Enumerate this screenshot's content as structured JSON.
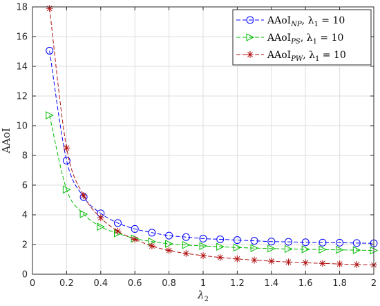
{
  "chart_data": {
    "type": "line",
    "xlabel": "λ",
    "xlabel_sub": "2",
    "ylabel": "AAoI",
    "xlim": [
      0,
      2
    ],
    "ylim": [
      0,
      18
    ],
    "xticks": [
      0,
      0.2,
      0.4,
      0.6,
      0.8,
      1,
      1.2,
      1.4,
      1.6,
      1.8,
      2
    ],
    "xtick_labels": [
      "0",
      "0.2",
      "0.4",
      "0.6",
      "0.8",
      "1",
      "1.2",
      "1.4",
      "1.6",
      "1.8",
      "2"
    ],
    "yticks": [
      0,
      2,
      4,
      6,
      8,
      10,
      12,
      14,
      16,
      18
    ],
    "ytick_labels": [
      "0",
      "2",
      "4",
      "6",
      "8",
      "10",
      "12",
      "14",
      "16",
      "18"
    ],
    "grid": true,
    "legend_position": "top-right",
    "x": [
      0.1,
      0.2,
      0.3,
      0.4,
      0.5,
      0.6,
      0.7,
      0.8,
      0.9,
      1.0,
      1.1,
      1.2,
      1.3,
      1.4,
      1.5,
      1.6,
      1.7,
      1.8,
      1.9,
      2.0
    ],
    "series": [
      {
        "name": "AAoI",
        "name_sub": "NP",
        "name_suffix": ", λ",
        "name_suffix_sub": "1",
        "name_tail": " = 10",
        "color": "#0000ff",
        "marker": "circle",
        "values": [
          15.05,
          7.65,
          5.2,
          4.1,
          3.45,
          3.05,
          2.8,
          2.6,
          2.5,
          2.4,
          2.35,
          2.3,
          2.25,
          2.2,
          2.18,
          2.15,
          2.13,
          2.12,
          2.1,
          2.08
        ]
      },
      {
        "name": "AAoI",
        "name_sub": "PS",
        "name_suffix": ", λ",
        "name_suffix_sub": "1",
        "name_tail": " = 10",
        "color": "#00bb00",
        "marker": "triangle-right",
        "values": [
          10.7,
          5.7,
          4.05,
          3.2,
          2.75,
          2.4,
          2.2,
          2.05,
          1.97,
          1.9,
          1.85,
          1.8,
          1.76,
          1.73,
          1.7,
          1.68,
          1.66,
          1.64,
          1.62,
          1.6
        ]
      },
      {
        "name": "AAoI",
        "name_sub": "PW",
        "name_suffix": ", λ",
        "name_suffix_sub": "1",
        "name_tail": " = 10",
        "color": "#b01010",
        "marker": "asterisk",
        "values": [
          17.9,
          8.5,
          5.3,
          3.8,
          2.9,
          2.35,
          1.9,
          1.6,
          1.4,
          1.25,
          1.13,
          1.03,
          0.95,
          0.88,
          0.82,
          0.77,
          0.73,
          0.69,
          0.65,
          0.62
        ]
      }
    ]
  }
}
